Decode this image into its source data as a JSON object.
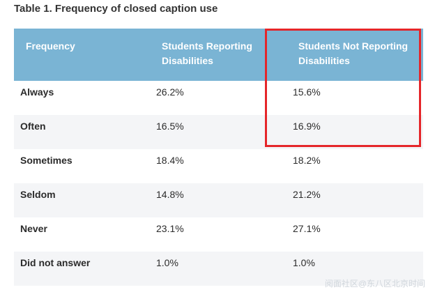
{
  "caption": "Table 1. Frequency of closed caption use",
  "table": {
    "headers": [
      "Frequency",
      "Students Reporting Disabilities",
      "Students Not Reporting Disabilities"
    ],
    "rows": [
      [
        "Always",
        "26.2%",
        "15.6%"
      ],
      [
        "Often",
        "16.5%",
        "16.9%"
      ],
      [
        "Sometimes",
        "18.4%",
        "18.2%"
      ],
      [
        "Seldom",
        "14.8%",
        "21.2%"
      ],
      [
        "Never",
        "23.1%",
        "27.1%"
      ],
      [
        "Did not answer",
        "1.0%",
        "1.0%"
      ]
    ]
  },
  "colors": {
    "header_bg": "#7ab4d4",
    "highlight_border": "#e5262a",
    "alt_row_bg": "#f4f5f7"
  },
  "watermark": "阅面社区@东八区北京时间"
}
